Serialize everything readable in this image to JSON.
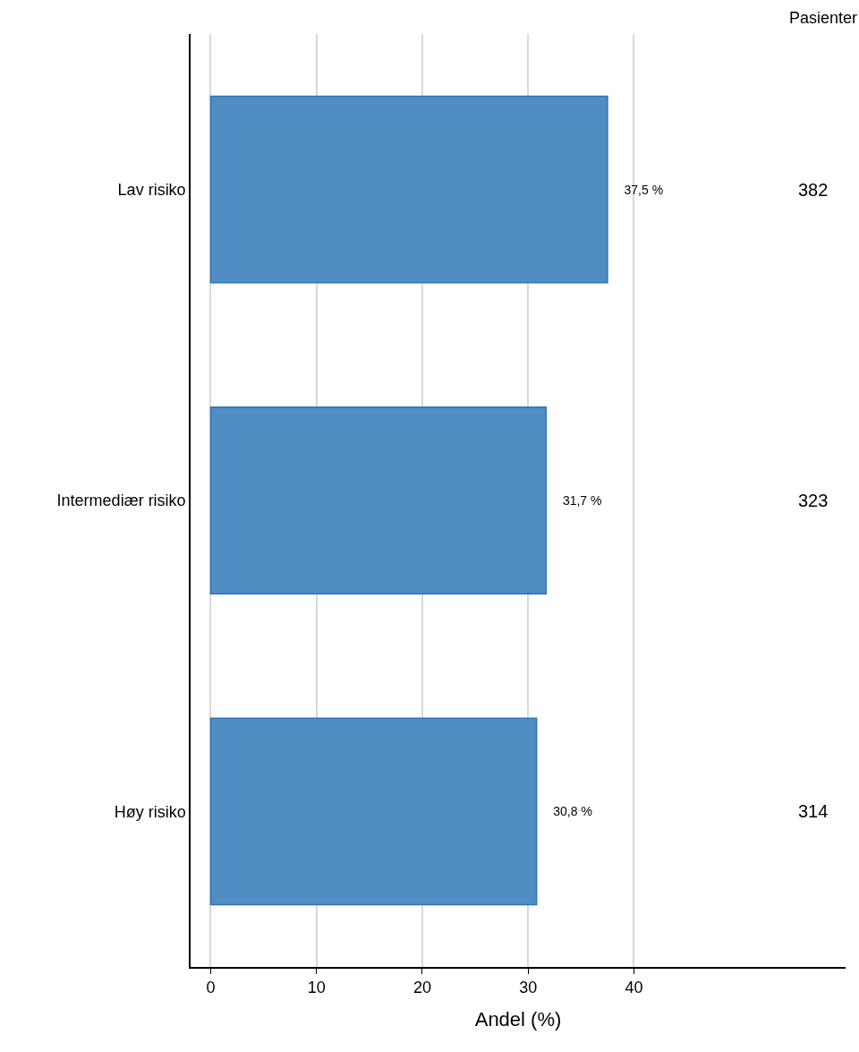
{
  "chart_data": {
    "type": "bar",
    "orientation": "horizontal",
    "xlabel": "Andel (%)",
    "categories": [
      "Lav risiko",
      "Intermediær risiko",
      "Høy risiko"
    ],
    "values": [
      37.5,
      31.7,
      30.8
    ],
    "value_labels": [
      "37,5 %",
      "31,7 %",
      "30,8 %"
    ],
    "color": "#4f8dc3",
    "xlim": [
      -1.9,
      60
    ],
    "xticks": [
      0,
      10,
      20,
      30,
      40
    ],
    "grid": "x",
    "annotations": [
      "Pasienter",
      "382",
      "323",
      "314"
    ]
  }
}
